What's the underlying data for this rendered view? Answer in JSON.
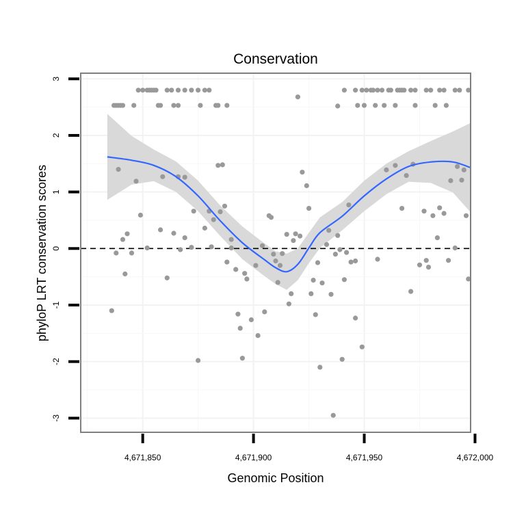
{
  "chart_data": {
    "type": "scatter",
    "title": "Conservation",
    "xlabel": "Genomic Position",
    "ylabel": "phyloP LRT conservation scores",
    "xlim": [
      4671822,
      4671998
    ],
    "ylim": [
      -3.25,
      3.1
    ],
    "x_ticks": [
      {
        "value": 4671850,
        "label": "4,671,850"
      },
      {
        "value": 4671900,
        "label": "4,671,900"
      },
      {
        "value": 4671950,
        "label": "4,671,950"
      },
      {
        "value": 4672000,
        "label": "4,672,000"
      }
    ],
    "y_ticks": [
      {
        "value": 3,
        "label": "3"
      },
      {
        "value": 2,
        "label": "2"
      },
      {
        "value": 1,
        "label": "1"
      },
      {
        "value": 0,
        "label": "0"
      },
      {
        "value": -1,
        "label": "-1"
      },
      {
        "value": -2,
        "label": "-2"
      },
      {
        "value": -3,
        "label": "-3"
      }
    ],
    "reference_line": {
      "y": 0,
      "style": "dashed"
    },
    "series": [
      {
        "name": "scores",
        "kind": "points",
        "color": "#999999",
        "points": [
          [
            4671837,
            2.53
          ],
          [
            4671838,
            2.53
          ],
          [
            4671839,
            2.53
          ],
          [
            4671840,
            2.53
          ],
          [
            4671841,
            2.53
          ],
          [
            4671846,
            2.53
          ],
          [
            4671848,
            2.8
          ],
          [
            4671850,
            2.8
          ],
          [
            4671852,
            2.8
          ],
          [
            4671853,
            2.8
          ],
          [
            4671854,
            2.8
          ],
          [
            4671855,
            2.8
          ],
          [
            4671856,
            2.8
          ],
          [
            4671857,
            2.53
          ],
          [
            4671858,
            2.53
          ],
          [
            4671861,
            2.8
          ],
          [
            4671863,
            2.8
          ],
          [
            4671864,
            2.53
          ],
          [
            4671866,
            2.8
          ],
          [
            4671866,
            2.53
          ],
          [
            4671869,
            2.8
          ],
          [
            4671872,
            2.8
          ],
          [
            4671875,
            2.8
          ],
          [
            4671876,
            2.53
          ],
          [
            4671878,
            2.8
          ],
          [
            4671880,
            2.8
          ],
          [
            4671883,
            2.53
          ],
          [
            4671884,
            2.53
          ],
          [
            4671888,
            2.53
          ],
          [
            4671920,
            2.68
          ],
          [
            4671938,
            2.52
          ],
          [
            4671941,
            2.8
          ],
          [
            4671946,
            2.8
          ],
          [
            4671947,
            2.53
          ],
          [
            4671949,
            2.8
          ],
          [
            4671950,
            2.53
          ],
          [
            4671951,
            2.8
          ],
          [
            4671953,
            2.8
          ],
          [
            4671954,
            2.8
          ],
          [
            4671955,
            2.53
          ],
          [
            4671956,
            2.8
          ],
          [
            4671958,
            2.8
          ],
          [
            4671959,
            2.53
          ],
          [
            4671961,
            2.8
          ],
          [
            4671962,
            2.8
          ],
          [
            4671964,
            2.53
          ],
          [
            4671965,
            2.8
          ],
          [
            4671966,
            2.8
          ],
          [
            4671967,
            2.8
          ],
          [
            4671968,
            2.8
          ],
          [
            4671971,
            2.8
          ],
          [
            4671973,
            2.8
          ],
          [
            4671973,
            2.53
          ],
          [
            4671978,
            2.8
          ],
          [
            4671980,
            2.8
          ],
          [
            4671982,
            2.53
          ],
          [
            4671984,
            2.8
          ],
          [
            4671986,
            2.8
          ],
          [
            4671987,
            2.53
          ],
          [
            4671991,
            2.8
          ],
          [
            4671993,
            2.8
          ],
          [
            4671997,
            2.8
          ],
          [
            4671836,
            -1.1
          ],
          [
            4671838,
            -0.08
          ],
          [
            4671839,
            1.4
          ],
          [
            4671841,
            0.16
          ],
          [
            4671842,
            -0.45
          ],
          [
            4671843,
            0.26
          ],
          [
            4671845,
            -0.08
          ],
          [
            4671847,
            1.19
          ],
          [
            4671849,
            0.59
          ],
          [
            4671852,
            0.01
          ],
          [
            4671858,
            0.33
          ],
          [
            4671859,
            1.27
          ],
          [
            4671861,
            -0.52
          ],
          [
            4671864,
            0.27
          ],
          [
            4671866,
            1.27
          ],
          [
            4671867,
            -0.02
          ],
          [
            4671869,
            0.19
          ],
          [
            4671869,
            1.26
          ],
          [
            4671872,
            0.02
          ],
          [
            4671873,
            0.66
          ],
          [
            4671875,
            -1.98
          ],
          [
            4671878,
            0.36
          ],
          [
            4671880,
            0.66
          ],
          [
            4671881,
            0.03
          ],
          [
            4671882,
            0.51
          ],
          [
            4671884,
            1.47
          ],
          [
            4671885,
            0.65
          ],
          [
            4671886,
            1.48
          ],
          [
            4671887,
            0.75
          ],
          [
            4671888,
            -0.24
          ],
          [
            4671890,
            0.16
          ],
          [
            4671890,
            0.01
          ],
          [
            4671892,
            -0.37
          ],
          [
            4671893,
            -1.16
          ],
          [
            4671894,
            -1.41
          ],
          [
            4671895,
            -1.94
          ],
          [
            4671896,
            -0.44
          ],
          [
            4671897,
            -0.54
          ],
          [
            4671899,
            -1.26
          ],
          [
            4671901,
            -0.3
          ],
          [
            4671902,
            -1.54
          ],
          [
            4671904,
            0.05
          ],
          [
            4671905,
            -1.12
          ],
          [
            4671907,
            0.58
          ],
          [
            4671908,
            0.55
          ],
          [
            4671909,
            -0.1
          ],
          [
            4671910,
            -0.22
          ],
          [
            4671911,
            -0.6
          ],
          [
            4671912,
            -0.3
          ],
          [
            4671913,
            -0.09
          ],
          [
            4671915,
            0.25
          ],
          [
            4671916,
            -0.98
          ],
          [
            4671917,
            -0.8
          ],
          [
            4671918,
            0.14
          ],
          [
            4671919,
            0.26
          ],
          [
            4671921,
            0.22
          ],
          [
            4671922,
            1.35
          ],
          [
            4671924,
            1.11
          ],
          [
            4671925,
            0.71
          ],
          [
            4671926,
            -0.8
          ],
          [
            4671927,
            -0.56
          ],
          [
            4671928,
            -1.17
          ],
          [
            4671929,
            -0.25
          ],
          [
            4671930,
            -2.1
          ],
          [
            4671931,
            -0.61
          ],
          [
            4671933,
            0.07
          ],
          [
            4671934,
            0.32
          ],
          [
            4671935,
            -0.81
          ],
          [
            4671936,
            -2.95
          ],
          [
            4671937,
            -0.1
          ],
          [
            4671938,
            0.23
          ],
          [
            4671939,
            -0.02
          ],
          [
            4671940,
            -1.96
          ],
          [
            4671941,
            -0.55
          ],
          [
            4671942,
            -0.07
          ],
          [
            4671943,
            0.77
          ],
          [
            4671944,
            -0.24
          ],
          [
            4671946,
            -0.22
          ],
          [
            4671946,
            -1.23
          ],
          [
            4671949,
            -1.74
          ],
          [
            4671956,
            -0.19
          ],
          [
            4671960,
            1.39
          ],
          [
            4671964,
            1.47
          ],
          [
            4671967,
            0.71
          ],
          [
            4671969,
            1.29
          ],
          [
            4671971,
            -0.76
          ],
          [
            4671972,
            1.49
          ],
          [
            4671975,
            -0.29
          ],
          [
            4671977,
            0.66
          ],
          [
            4671978,
            -0.21
          ],
          [
            4671979,
            -0.33
          ],
          [
            4671981,
            0.58
          ],
          [
            4671983,
            0.19
          ],
          [
            4671984,
            0.72
          ],
          [
            4671986,
            0.62
          ],
          [
            4671988,
            -0.21
          ],
          [
            4671989,
            1.2
          ],
          [
            4671991,
            0.01
          ],
          [
            4671992,
            1.45
          ],
          [
            4671994,
            1.21
          ],
          [
            4671995,
            1.39
          ],
          [
            4671996,
            0.58
          ],
          [
            4671997,
            -0.54
          ]
        ]
      },
      {
        "name": "loess fit",
        "kind": "line",
        "color": "#3366ff",
        "x": [
          4671834,
          4671845,
          4671855,
          4671865,
          4671875,
          4671885,
          4671895,
          4671905,
          4671910,
          4671915,
          4671920,
          4671925,
          4671930,
          4671940,
          4671950,
          4671960,
          4671970,
          4671980,
          4671990,
          4671998
        ],
        "y": [
          1.62,
          1.56,
          1.47,
          1.27,
          0.93,
          0.49,
          0.1,
          -0.2,
          -0.34,
          -0.41,
          -0.28,
          0.01,
          0.28,
          0.57,
          0.93,
          1.23,
          1.45,
          1.53,
          1.53,
          1.43
        ]
      },
      {
        "name": "confidence band",
        "kind": "band",
        "color": "#d9d9d9",
        "x": [
          4671834,
          4671845,
          4671855,
          4671865,
          4671875,
          4671885,
          4671895,
          4671905,
          4671910,
          4671915,
          4671920,
          4671925,
          4671930,
          4671940,
          4671950,
          4671960,
          4671970,
          4671980,
          4671990,
          4671998
        ],
        "lower": [
          0.86,
          1.13,
          1.19,
          1.0,
          0.66,
          0.22,
          -0.19,
          -0.49,
          -0.63,
          -0.73,
          -0.56,
          -0.26,
          0.01,
          0.32,
          0.66,
          0.96,
          1.18,
          1.16,
          0.99,
          0.64
        ],
        "upper": [
          2.38,
          1.99,
          1.75,
          1.54,
          1.2,
          0.76,
          0.39,
          0.09,
          -0.05,
          -0.09,
          0.0,
          0.28,
          0.55,
          0.82,
          1.2,
          1.5,
          1.72,
          1.9,
          2.07,
          2.22
        ]
      }
    ]
  }
}
